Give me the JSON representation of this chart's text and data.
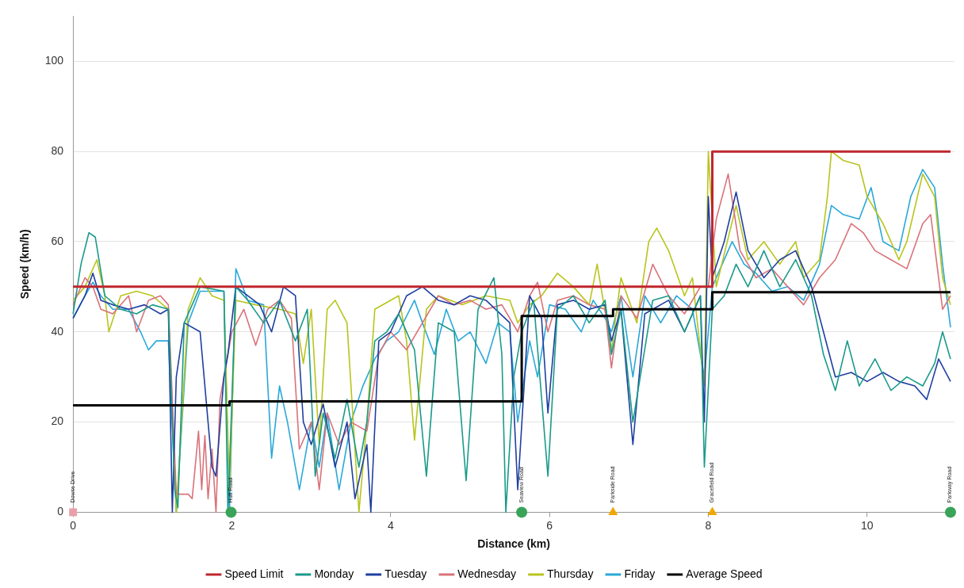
{
  "chart_data": {
    "type": "line",
    "xlabel": "Distance (km)",
    "ylabel": "Speed (km/h)",
    "xlim": [
      0,
      11.1
    ],
    "xticks": [
      0,
      2,
      4,
      6,
      8,
      10
    ],
    "ylim": [
      0,
      110
    ],
    "yticks": [
      0,
      20,
      40,
      60,
      80,
      100
    ],
    "grid": "y",
    "legend": "bottom",
    "marker": "none",
    "line_style": "solid",
    "series": [
      {
        "name": "Speed Limit",
        "type": "step",
        "color": "#c0272d",
        "x": [
          0,
          8.05,
          11.05
        ],
        "values": [
          50,
          80,
          80
        ]
      },
      {
        "name": "Monday",
        "color": "#1a9a8a",
        "x": [
          0,
          0.1,
          0.2,
          0.28,
          0.4,
          0.6,
          0.8,
          1.0,
          1.2,
          1.28,
          1.32,
          1.4,
          1.6,
          1.9,
          1.95,
          2.05,
          2.2,
          2.4,
          2.6,
          2.8,
          2.95,
          3.05,
          3.15,
          3.3,
          3.45,
          3.6,
          3.7,
          3.8,
          3.95,
          4.1,
          4.3,
          4.45,
          4.6,
          4.8,
          4.95,
          5.1,
          5.3,
          5.4,
          5.45,
          5.55,
          5.65,
          5.8,
          5.98,
          6.1,
          6.3,
          6.5,
          6.7,
          6.78,
          6.9,
          7.05,
          7.3,
          7.5,
          7.7,
          7.9,
          7.95,
          8.05,
          8.2,
          8.35,
          8.5,
          8.7,
          8.9,
          9.1,
          9.3,
          9.45,
          9.6,
          9.75,
          9.9,
          10.1,
          10.3,
          10.5,
          10.7,
          10.85,
          10.95,
          11.05
        ],
        "values": [
          44,
          55,
          62,
          61,
          48,
          45,
          44,
          46,
          45,
          5,
          1,
          42,
          50,
          49,
          0,
          50,
          47,
          42,
          47,
          38,
          45,
          8,
          22,
          12,
          25,
          10,
          20,
          38,
          40,
          44,
          36,
          8,
          42,
          40,
          7,
          45,
          52,
          35,
          0,
          30,
          40,
          47,
          8,
          45,
          48,
          42,
          47,
          35,
          45,
          20,
          47,
          48,
          40,
          48,
          10,
          45,
          48,
          55,
          50,
          58,
          50,
          56,
          48,
          35,
          27,
          38,
          28,
          34,
          27,
          30,
          28,
          33,
          40,
          34
        ]
      },
      {
        "name": "Tuesday",
        "color": "#1f3fa0",
        "x": [
          0,
          0.15,
          0.25,
          0.35,
          0.5,
          0.7,
          0.9,
          1.1,
          1.2,
          1.25,
          1.3,
          1.4,
          1.6,
          1.75,
          1.8,
          1.9,
          1.95,
          2.05,
          2.2,
          2.35,
          2.5,
          2.65,
          2.8,
          2.9,
          3.0,
          3.15,
          3.3,
          3.45,
          3.55,
          3.7,
          3.75,
          3.85,
          4.0,
          4.2,
          4.4,
          4.6,
          4.8,
          5.0,
          5.2,
          5.5,
          5.6,
          5.75,
          5.9,
          5.98,
          6.1,
          6.3,
          6.5,
          6.7,
          6.78,
          6.9,
          7.05,
          7.2,
          7.5,
          7.7,
          7.9,
          7.95,
          8.0,
          8.05,
          8.2,
          8.35,
          8.5,
          8.7,
          8.9,
          9.1,
          9.3,
          9.45,
          9.6,
          9.8,
          10.0,
          10.2,
          10.4,
          10.6,
          10.75,
          10.9,
          11.05
        ],
        "values": [
          43,
          48,
          53,
          47,
          46,
          45,
          46,
          44,
          45,
          0,
          30,
          42,
          40,
          10,
          8,
          30,
          35,
          50,
          48,
          46,
          40,
          50,
          48,
          20,
          15,
          24,
          10,
          20,
          3,
          15,
          0,
          38,
          40,
          48,
          50,
          47,
          46,
          48,
          47,
          42,
          5,
          48,
          43,
          22,
          46,
          47,
          45,
          46,
          38,
          45,
          15,
          44,
          47,
          40,
          48,
          20,
          70,
          52,
          60,
          71,
          58,
          52,
          56,
          58,
          50,
          40,
          30,
          31,
          29,
          31,
          29,
          28,
          25,
          34,
          29
        ]
      },
      {
        "name": "Wednesday",
        "color": "#d9727a",
        "x": [
          0,
          0.15,
          0.25,
          0.35,
          0.5,
          0.7,
          0.8,
          0.95,
          1.1,
          1.2,
          1.3,
          1.45,
          1.5,
          1.58,
          1.62,
          1.66,
          1.7,
          1.75,
          1.8,
          1.85,
          1.9,
          2.0,
          2.15,
          2.3,
          2.45,
          2.6,
          2.75,
          2.85,
          3.0,
          3.1,
          3.2,
          3.35,
          3.5,
          3.7,
          3.85,
          4.0,
          4.2,
          4.4,
          4.6,
          4.8,
          5.0,
          5.2,
          5.4,
          5.6,
          5.75,
          5.85,
          5.98,
          6.1,
          6.3,
          6.5,
          6.7,
          6.78,
          6.9,
          7.1,
          7.3,
          7.5,
          7.7,
          7.9,
          8.0,
          8.1,
          8.25,
          8.4,
          8.6,
          8.8,
          9.0,
          9.2,
          9.4,
          9.6,
          9.8,
          9.95,
          10.1,
          10.3,
          10.5,
          10.7,
          10.8,
          10.95,
          11.05
        ],
        "values": [
          46,
          52,
          50,
          45,
          44,
          48,
          40,
          47,
          48,
          46,
          4,
          4,
          3,
          18,
          5,
          17,
          3,
          14,
          0,
          25,
          30,
          40,
          45,
          37,
          45,
          47,
          43,
          14,
          20,
          5,
          22,
          15,
          20,
          18,
          35,
          40,
          36,
          42,
          48,
          46,
          47,
          45,
          46,
          40,
          48,
          51,
          40,
          47,
          48,
          46,
          45,
          32,
          48,
          43,
          55,
          48,
          44,
          50,
          50,
          65,
          75,
          58,
          52,
          54,
          50,
          46,
          52,
          56,
          64,
          62,
          58,
          56,
          54,
          64,
          66,
          45,
          48
        ]
      },
      {
        "name": "Thursday",
        "color": "#b8c41c",
        "x": [
          0,
          0.15,
          0.3,
          0.4,
          0.45,
          0.6,
          0.8,
          1.0,
          1.2,
          1.3,
          1.45,
          1.6,
          1.75,
          1.9,
          1.97,
          2.05,
          2.3,
          2.6,
          2.8,
          2.9,
          3.0,
          3.1,
          3.2,
          3.3,
          3.45,
          3.6,
          3.7,
          3.8,
          4.1,
          4.2,
          4.3,
          4.45,
          4.6,
          4.9,
          5.2,
          5.5,
          5.6,
          5.75,
          5.9,
          6.1,
          6.3,
          6.5,
          6.6,
          6.78,
          6.9,
          7.1,
          7.25,
          7.35,
          7.5,
          7.7,
          7.8,
          7.95,
          8.0,
          8.1,
          8.35,
          8.5,
          8.7,
          8.9,
          9.1,
          9.2,
          9.4,
          9.5,
          9.55,
          9.7,
          9.9,
          10.0,
          10.2,
          10.4,
          10.5,
          10.7,
          10.85,
          10.95,
          11.05
        ],
        "values": [
          47,
          50,
          56,
          48,
          40,
          48,
          49,
          48,
          45,
          0,
          45,
          52,
          48,
          47,
          5,
          47,
          46,
          45,
          44,
          33,
          45,
          15,
          45,
          47,
          42,
          0,
          20,
          45,
          48,
          38,
          16,
          45,
          48,
          46,
          48,
          47,
          42,
          46,
          48,
          53,
          50,
          46,
          55,
          36,
          52,
          42,
          60,
          63,
          58,
          48,
          52,
          28,
          80,
          50,
          68,
          56,
          60,
          55,
          60,
          52,
          56,
          70,
          80,
          78,
          77,
          70,
          64,
          56,
          60,
          75,
          70,
          52,
          46
        ]
      },
      {
        "name": "Friday",
        "color": "#29a8d8",
        "x": [
          0,
          0.15,
          0.25,
          0.35,
          0.5,
          0.7,
          0.85,
          0.95,
          1.05,
          1.2,
          1.3,
          1.45,
          1.6,
          1.9,
          1.97,
          2.05,
          2.2,
          2.4,
          2.5,
          2.6,
          2.7,
          2.85,
          3.0,
          3.1,
          3.2,
          3.35,
          3.5,
          3.65,
          3.8,
          3.95,
          4.1,
          4.3,
          4.4,
          4.55,
          4.7,
          4.85,
          5.0,
          5.2,
          5.35,
          5.5,
          5.6,
          5.75,
          5.85,
          6.0,
          6.2,
          6.4,
          6.55,
          6.7,
          6.78,
          6.9,
          7.05,
          7.2,
          7.4,
          7.6,
          7.8,
          7.95,
          8.05,
          8.3,
          8.45,
          8.6,
          8.8,
          9.0,
          9.2,
          9.4,
          9.55,
          9.7,
          9.9,
          10.05,
          10.2,
          10.4,
          10.55,
          10.7,
          10.85,
          10.95,
          11.05
        ],
        "values": [
          43,
          48,
          51,
          48,
          45,
          45,
          40,
          36,
          38,
          38,
          0,
          42,
          49,
          49,
          0,
          54,
          47,
          46,
          12,
          28,
          20,
          5,
          20,
          10,
          22,
          5,
          20,
          28,
          34,
          38,
          40,
          47,
          42,
          35,
          45,
          38,
          40,
          33,
          42,
          40,
          20,
          38,
          30,
          46,
          45,
          40,
          47,
          43,
          40,
          48,
          30,
          48,
          42,
          48,
          45,
          30,
          50,
          60,
          55,
          53,
          49,
          50,
          47,
          55,
          68,
          66,
          65,
          72,
          60,
          58,
          70,
          76,
          72,
          55,
          41
        ]
      },
      {
        "name": "Average Speed",
        "type": "step",
        "color": "#000000",
        "x": [
          0,
          1.97,
          5.65,
          6.8,
          8.05,
          11.05
        ],
        "values": [
          23.7,
          24.6,
          43.5,
          45,
          48.8,
          48.8
        ]
      },
      {
        "type": "scatter",
        "marker": "square",
        "color": "#e8a0a8",
        "x": [
          0
        ],
        "values": [
          0
        ]
      },
      {
        "type": "scatter",
        "marker": "circle",
        "color": "#3aa35a",
        "x": [
          1.99,
          5.65,
          11.05
        ],
        "values": [
          0,
          0,
          0
        ]
      },
      {
        "type": "scatter",
        "marker": "triangle",
        "color": "#f0a800",
        "x": [
          6.8,
          8.05
        ],
        "values": [
          0,
          0
        ]
      }
    ],
    "annotations": [
      {
        "text": "Dowse Drive",
        "x": 0,
        "y": 0
      },
      {
        "text": "Hutt Road",
        "x": 1.99,
        "y": 0
      },
      {
        "text": "Seaview Road",
        "x": 5.65,
        "y": 0
      },
      {
        "text": "Parkside Road",
        "x": 6.8,
        "y": 0
      },
      {
        "text": "Gracefield Road",
        "x": 8.05,
        "y": 0
      },
      {
        "text": "Parkway Road",
        "x": 11.05,
        "y": 0
      }
    ]
  }
}
